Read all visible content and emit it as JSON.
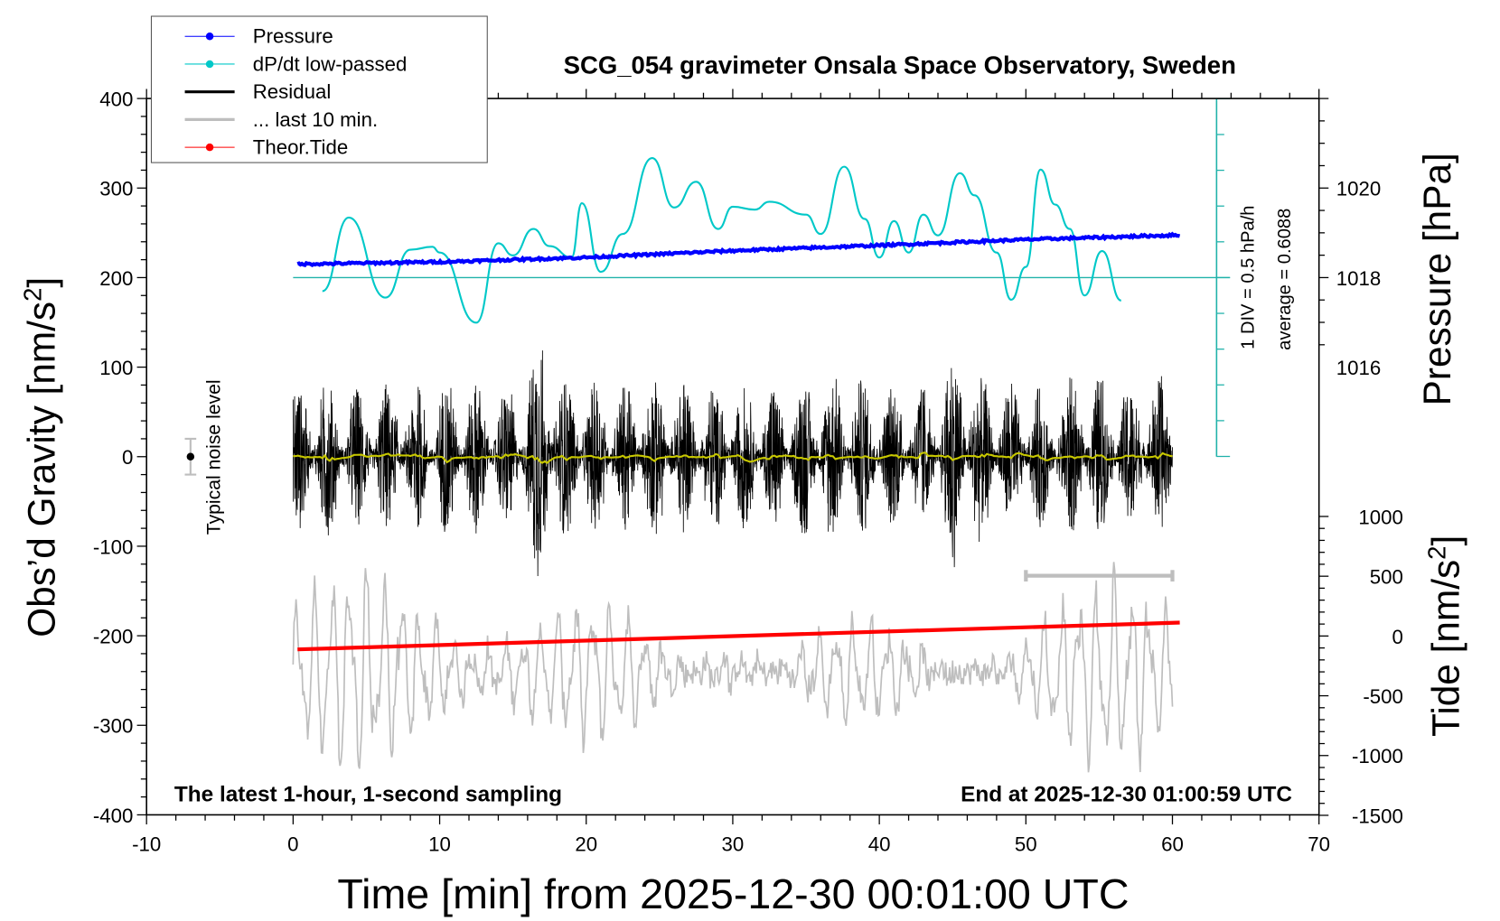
{
  "chart_data": {
    "type": "line",
    "title": "SCG_054 gravimeter Onsala Space Observatory, Sweden",
    "xlabel": "Time [min] from 2025-12-30 00:01:00 UTC",
    "ylabel": "Obs’d Gravity [nm/s",
    "ylabel_sup": "2",
    "ylabel_end": "]",
    "y2label": "Pressure [hPa]",
    "y3label": "Tide [nm/s",
    "y3label_sup": "2",
    "y3label_end": "]",
    "xlim": [
      -10,
      70
    ],
    "ylim": [
      -400,
      400
    ],
    "y2lim_visible": [
      1016,
      1020
    ],
    "y3lim": [
      -1500,
      1000
    ],
    "x_ticks": [
      "-10",
      "0",
      "10",
      "20",
      "30",
      "40",
      "50",
      "60",
      "70"
    ],
    "y_ticks": [
      "400",
      "300",
      "200",
      "100",
      "0",
      "-100",
      "-200",
      "-300",
      "-400"
    ],
    "y2_ticks": [
      "1020",
      "1018",
      "1016"
    ],
    "y3_ticks": [
      "1000",
      "500",
      "0",
      "-500",
      "-1000",
      "-1500"
    ],
    "legend": {
      "placement": "top-left",
      "entries": [
        {
          "label": "Pressure",
          "color": "#0000ff",
          "marker": true
        },
        {
          "label": "dP/dt low-passed",
          "color": "#00c8c8",
          "marker": true
        },
        {
          "label": "Residual",
          "color": "#000000",
          "marker": false
        },
        {
          "label": "... last 10 min.",
          "color": "#bebebe",
          "marker": false
        },
        {
          "label": "Theor.Tide",
          "color": "#ff0000",
          "marker": true
        }
      ]
    },
    "annotations": {
      "bottom_left": "The latest 1-hour, 1-second sampling",
      "bottom_right": "End at 2025-12-30 01:00:59 UTC",
      "dpdt_scale": "1 DIV = 0.5 hPa/h",
      "dpdt_average": "average = 0.6088",
      "noise_label": "Typical noise level"
    },
    "noise_level": {
      "x": -7,
      "center": 0,
      "halfwidth": 20
    },
    "last10_bar": {
      "x_start": 50,
      "x_end": 60,
      "y": -133
    },
    "series": {
      "pressure_hPa": {
        "x": [
          0.3,
          10,
          20,
          30,
          40,
          50,
          60.5
        ],
        "values": [
          1018.3,
          1018.35,
          1018.45,
          1018.6,
          1018.72,
          1018.85,
          1018.95
        ]
      },
      "dpdt_hPa_per_h": {
        "x": [
          2,
          3.8,
          6.3,
          8,
          9.5,
          10,
          12.5,
          14,
          15,
          16.4,
          17.5,
          19,
          19.7,
          21,
          22.5,
          24.5,
          26,
          27.5,
          29,
          30,
          31.5,
          32.5,
          35,
          36,
          37.6,
          39,
          40,
          41,
          42,
          43,
          44,
          45.5,
          46.5,
          48,
          49,
          50,
          51,
          52,
          53,
          54,
          55.2,
          56.5
        ],
        "values": [
          -0.19,
          0.84,
          -0.28,
          0.39,
          0.43,
          0.35,
          -0.63,
          0.48,
          0.31,
          0.68,
          0.44,
          0.28,
          1.04,
          0.08,
          0.61,
          1.67,
          0.98,
          1.34,
          0.68,
          0.99,
          0.95,
          1.06,
          0.88,
          0.61,
          1.55,
          0.82,
          0.28,
          0.79,
          0.35,
          0.88,
          0.59,
          1.46,
          1.15,
          0.35,
          -0.31,
          0.15,
          1.51,
          1.02,
          0.68,
          -0.25,
          0.37,
          -0.32
        ]
      },
      "residual_envelope": {
        "x": [
          0,
          2,
          4,
          6,
          8,
          10,
          12,
          14,
          16,
          17.3,
          18,
          20,
          22,
          24,
          26,
          28,
          30,
          32,
          34,
          36,
          38,
          40,
          42,
          44,
          45.5,
          47,
          49,
          51,
          53,
          55,
          57,
          59,
          60
        ],
        "values": [
          85,
          90,
          80,
          85,
          80,
          85,
          90,
          75,
          95,
          180,
          90,
          85,
          80,
          90,
          95,
          85,
          80,
          85,
          90,
          95,
          90,
          85,
          80,
          85,
          150,
          90,
          85,
          80,
          90,
          95,
          85,
          90,
          95
        ]
      },
      "tide_nm_s2": {
        "x": [
          0.3,
          60.5
        ],
        "values": [
          -112,
          112
        ]
      },
      "last10_gray": {
        "center": -240,
        "amplitude": 80
      }
    }
  }
}
